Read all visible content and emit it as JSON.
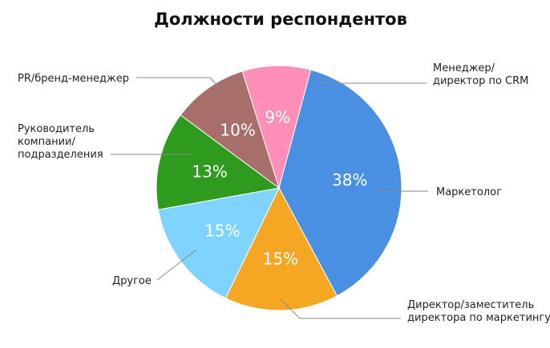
{
  "chart_data": {
    "type": "pie",
    "title": "Должности респондентов",
    "slices": [
      {
        "label": [
          "Маркетолог"
        ],
        "value": 38,
        "value_label": "38%",
        "color": "#4a90e2"
      },
      {
        "label": [
          "Директор/заместитель",
          "директора по маркетингу"
        ],
        "value": 15,
        "value_label": "15%",
        "color": "#f5a623"
      },
      {
        "label": [
          "Другое"
        ],
        "value": 15,
        "value_label": "15%",
        "color": "#7fd3ff"
      },
      {
        "label": [
          "Руководитель",
          "компании/",
          "подразделения"
        ],
        "value": 13,
        "value_label": "13%",
        "color": "#2e9b1e"
      },
      {
        "label": [
          "PR/бренд-менеджер"
        ],
        "value": 10,
        "value_label": "10%",
        "color": "#a86e6a"
      },
      {
        "label": [
          "Менеджер/",
          "директор по CRM"
        ],
        "value": 9,
        "value_label": "9%",
        "color": "#ff8fb8"
      }
    ]
  }
}
